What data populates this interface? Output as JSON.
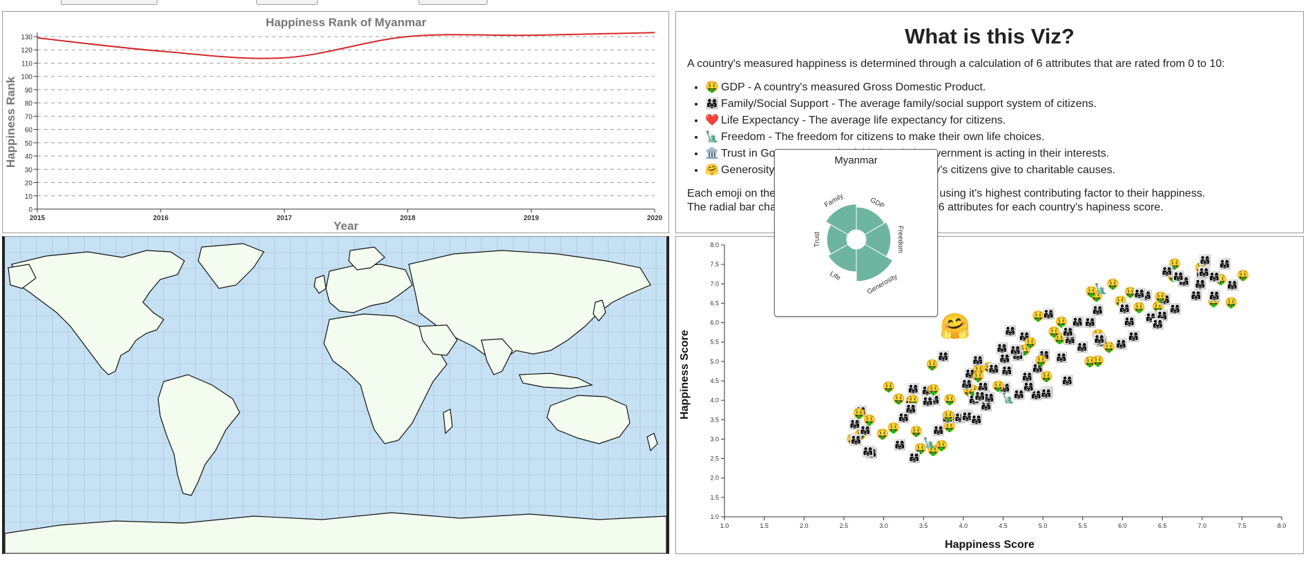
{
  "line_chart": {
    "chart_data": {
      "type": "line",
      "title": "Happiness Rank of Myanmar",
      "xlabel": "Year",
      "ylabel": "Happiness Rank",
      "x": [
        2015,
        2016,
        2017,
        2018,
        2019,
        2020
      ],
      "values": [
        129,
        119,
        114,
        130,
        131,
        133
      ],
      "xlim": [
        2015,
        2020
      ],
      "ylim": [
        0,
        130
      ],
      "yticks": [
        0,
        10,
        20,
        30,
        40,
        50,
        60,
        70,
        80,
        90,
        100,
        110,
        120,
        130
      ],
      "grid": "dashed-horizontal",
      "line_color": "#d62728"
    }
  },
  "info": {
    "title": "What is this Viz?",
    "intro": "A country's measured happiness is determined through a calculation of 6 attributes that are rated from 0 to 10:",
    "items": [
      {
        "emoji": "🤑",
        "icon": "money-face-icon",
        "text": "GDP - A country's measured Gross Domestic Product."
      },
      {
        "emoji": "👨‍👩‍👧",
        "icon": "family-icon",
        "text": "Family/Social Support - The average family/social support system of citizens."
      },
      {
        "emoji": "❤️",
        "icon": "heart-icon",
        "text": "Life Expectancy - The average life expectancy for citizens."
      },
      {
        "emoji": "🗽",
        "icon": "statue-of-liberty-icon",
        "text": "Freedom - The freedom for citizens to make their own life choices."
      },
      {
        "emoji": "🏛️",
        "icon": "government-building-icon",
        "text": "Trust in Government - The faith that their government is acting in their interests."
      },
      {
        "emoji": "🤗",
        "icon": "hugging-face-icon",
        "text": "Generosity - The amount of money a country's citizens give to charitable causes."
      }
    ],
    "para1": "Each emoji on the scatter plot represents a country using it's highest contributing factor to their happiness.",
    "para2": "The radial bar chart shows the breakdown of these 6 attributes for each country's hapiness score."
  },
  "tooltip": {
    "country": "Myanmar",
    "color": "#6db5a1",
    "labels": [
      "GDP",
      "Freedom",
      "Generosity",
      "Life",
      "Trust",
      "Family"
    ],
    "values": [
      0.55,
      0.6,
      0.78,
      0.55,
      0.48,
      0.62
    ]
  },
  "scatter": {
    "chart_data": {
      "type": "scatter",
      "xlabel": "Happiness Score",
      "ylabel": "Happiness Score",
      "xlim": [
        1.0,
        8.0
      ],
      "ylim": [
        1.0,
        8.0
      ],
      "xticks": [
        1.0,
        1.5,
        2.0,
        2.5,
        3.0,
        3.5,
        4.0,
        4.5,
        5.0,
        5.5,
        6.0,
        6.5,
        7.0,
        7.5,
        8.0
      ],
      "yticks": [
        1.0,
        1.5,
        2.0,
        2.5,
        3.0,
        3.5,
        4.0,
        4.5,
        5.0,
        5.5,
        6.0,
        6.5,
        7.0,
        7.5,
        8.0
      ],
      "highlight": {
        "x": 3.9,
        "y": 5.9,
        "emoji": "🤗"
      }
    }
  },
  "map": {
    "ocean_color": "#c6e1f3",
    "land_color": "#f3fcee"
  }
}
